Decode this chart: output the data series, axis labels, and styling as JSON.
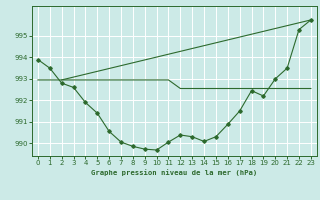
{
  "bg_color": "#cceae7",
  "grid_color": "#ffffff",
  "line_color": "#2d6a2d",
  "title": "Graphe pression niveau de la mer (hPa)",
  "xlim": [
    -0.5,
    23.5
  ],
  "ylim": [
    989.4,
    996.4
  ],
  "yticks": [
    990,
    991,
    992,
    993,
    994,
    995
  ],
  "ytick_labels": [
    "990",
    "991",
    "992",
    "993",
    "994",
    "995"
  ],
  "xticks": [
    0,
    1,
    2,
    3,
    4,
    5,
    6,
    7,
    8,
    9,
    10,
    11,
    12,
    13,
    14,
    15,
    16,
    17,
    18,
    19,
    20,
    21,
    22,
    23
  ],
  "line_curve": {
    "x": [
      0,
      1,
      2,
      3,
      4,
      5,
      6,
      7,
      8,
      9,
      10,
      11,
      12,
      13,
      14,
      15,
      16,
      17,
      18,
      19,
      20,
      21,
      22,
      23
    ],
    "y": [
      993.9,
      993.5,
      992.8,
      992.6,
      991.9,
      991.4,
      990.55,
      990.05,
      989.85,
      989.72,
      989.68,
      990.05,
      990.38,
      990.3,
      990.08,
      990.3,
      990.88,
      991.5,
      992.45,
      992.2,
      993.0,
      993.5,
      995.3,
      995.75
    ]
  },
  "line_flat": {
    "x": [
      0,
      1,
      2,
      3,
      4,
      5,
      6,
      7,
      8,
      9,
      10,
      11,
      12,
      13,
      14,
      15,
      16,
      17,
      18,
      19,
      20,
      21,
      22,
      23
    ],
    "y": [
      992.95,
      992.95,
      992.95,
      992.95,
      992.95,
      992.95,
      992.95,
      992.95,
      992.95,
      992.95,
      992.95,
      992.95,
      992.55,
      992.55,
      992.55,
      992.55,
      992.55,
      992.55,
      992.55,
      992.55,
      992.55,
      992.55,
      992.55,
      992.55
    ]
  },
  "line_diag": {
    "x": [
      2,
      23
    ],
    "y": [
      992.95,
      995.75
    ]
  }
}
